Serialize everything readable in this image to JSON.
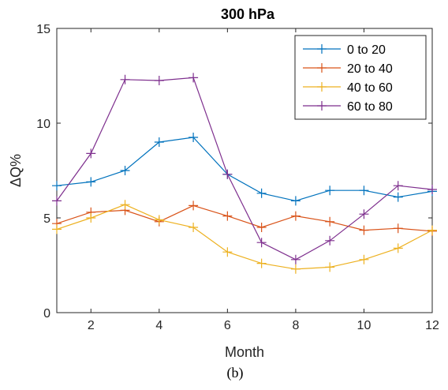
{
  "chart_data": {
    "type": "line",
    "title": "300 hPa",
    "xlabel": "Month",
    "ylabel": "ΔQ%",
    "caption": "(b)",
    "xlim": [
      1,
      12
    ],
    "ylim": [
      0,
      15
    ],
    "xticks": [
      2,
      4,
      6,
      8,
      10,
      12
    ],
    "yticks": [
      0,
      5,
      10,
      15
    ],
    "grid": false,
    "legend_position": "top-right",
    "x": [
      1,
      2,
      3,
      4,
      5,
      6,
      7,
      8,
      9,
      10,
      11,
      12
    ],
    "series": [
      {
        "name": "0 to 20",
        "color": "#0072BD",
        "values": [
          6.7,
          6.9,
          7.5,
          9.0,
          9.25,
          7.3,
          6.3,
          5.9,
          6.45,
          6.45,
          6.1,
          6.4
        ]
      },
      {
        "name": "20 to 40",
        "color": "#D95319",
        "values": [
          4.7,
          5.3,
          5.4,
          4.8,
          5.65,
          5.1,
          4.5,
          5.1,
          4.8,
          4.35,
          4.45,
          4.3
        ]
      },
      {
        "name": "40 to 60",
        "color": "#EDB120",
        "values": [
          4.4,
          5.0,
          5.7,
          4.9,
          4.5,
          3.2,
          2.6,
          2.3,
          2.4,
          2.8,
          3.4,
          4.35
        ]
      },
      {
        "name": "60 to 80",
        "color": "#7E2F8E",
        "values": [
          5.9,
          8.4,
          12.3,
          12.25,
          12.4,
          7.3,
          3.7,
          2.8,
          3.8,
          5.2,
          6.7,
          6.5
        ]
      }
    ]
  }
}
